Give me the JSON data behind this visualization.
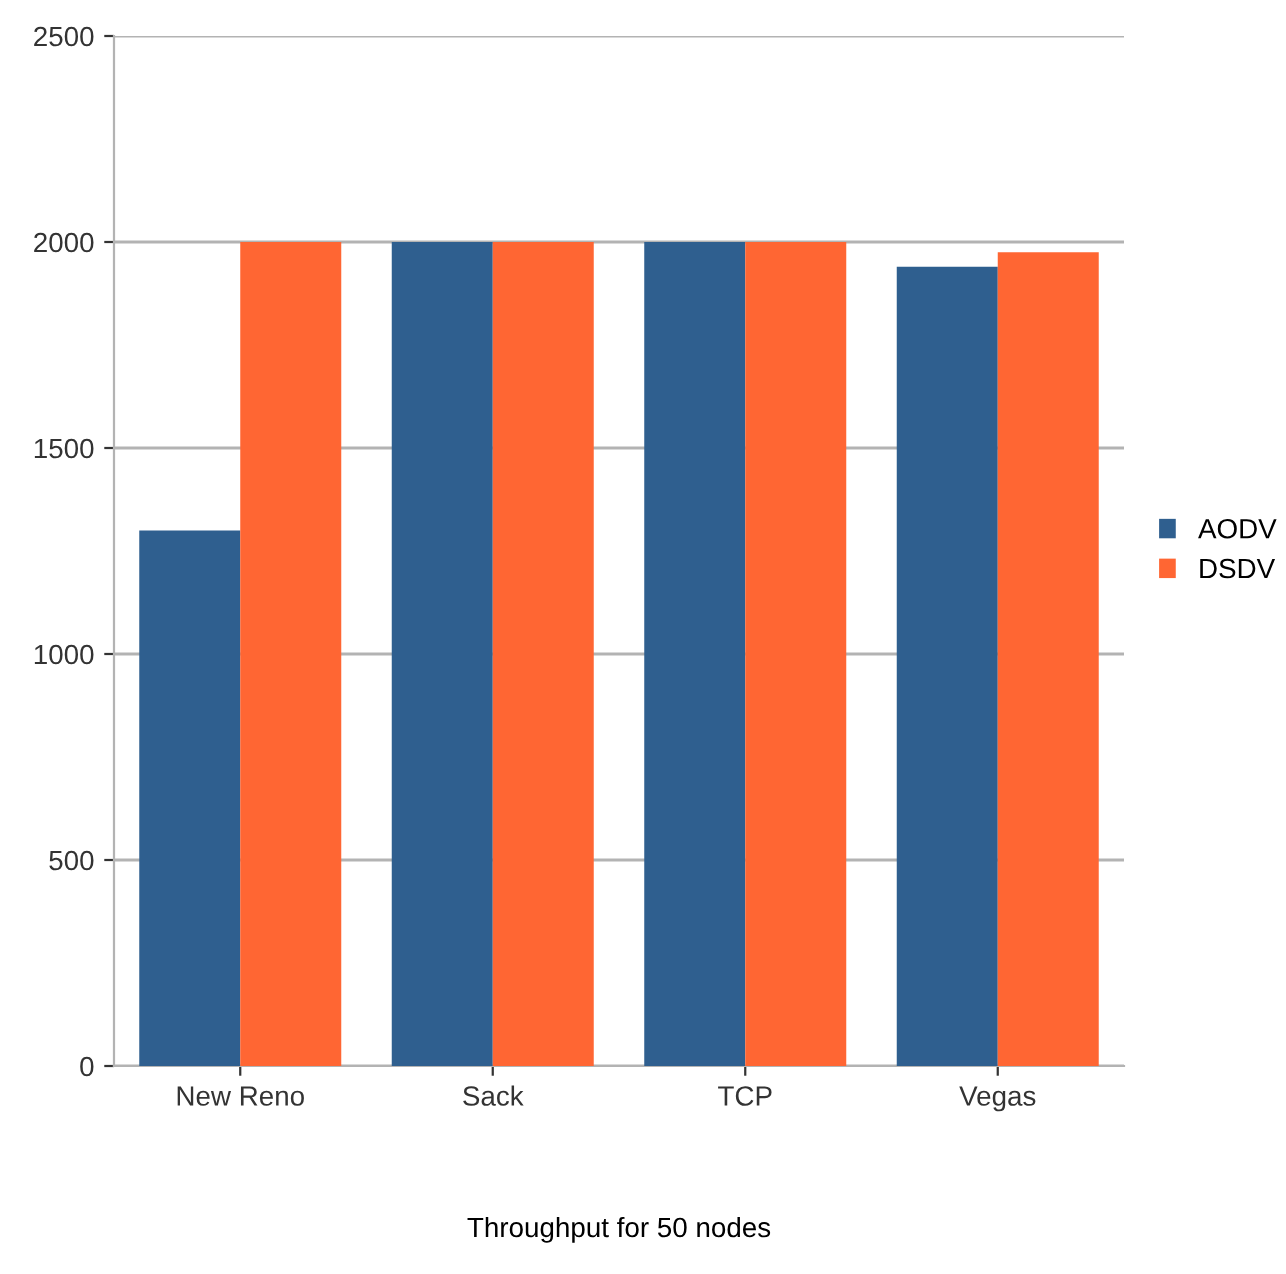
{
  "chart_data": {
    "type": "bar",
    "xlabel": "Throughput for 50 nodes",
    "categories": [
      "New Reno",
      "Sack",
      "TCP",
      "Vegas"
    ],
    "series": [
      {
        "name": "AODV",
        "color": "#2f5f8f",
        "values": [
          1300,
          2000,
          2000,
          1940
        ]
      },
      {
        "name": "DSDV",
        "color": "#ff6633",
        "values": [
          2000,
          2000,
          2000,
          1975
        ]
      }
    ],
    "ylim": [
      0,
      2500
    ],
    "yticks": [
      0,
      500,
      1000,
      1500,
      2000,
      2500
    ],
    "grid": "y",
    "legend": "right"
  }
}
